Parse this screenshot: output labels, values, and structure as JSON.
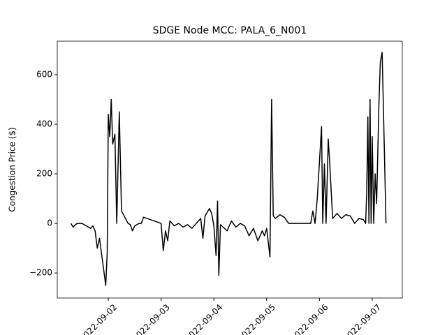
{
  "chart_data": {
    "type": "line",
    "title": "SDGE Node MCC: PALA_6_N001",
    "y_label": "Congestion Price ($)",
    "x": [
      "2022-09-01T07:00",
      "2022-09-01T08:00",
      "2022-09-01T09:00",
      "2022-09-01T10:00",
      "2022-09-01T12:00",
      "2022-09-01T14:00",
      "2022-09-01T16:00",
      "2022-09-01T17:00",
      "2022-09-01T18:00",
      "2022-09-01T19:00",
      "2022-09-01T20:00",
      "2022-09-01T22:50",
      "2022-09-01T23:30",
      "2022-09-02T00:00",
      "2022-09-02T00:40",
      "2022-09-02T01:20",
      "2022-09-02T02:00",
      "2022-09-02T03:00",
      "2022-09-02T03:50",
      "2022-09-02T05:00",
      "2022-09-02T06:00",
      "2022-09-02T09:00",
      "2022-09-02T10:00",
      "2022-09-02T11:00",
      "2022-09-02T12:00",
      "2022-09-02T14:00",
      "2022-09-02T15:00",
      "2022-09-02T16:00",
      "2022-09-03T00:00",
      "2022-09-03T01:00",
      "2022-09-03T02:00",
      "2022-09-03T03:00",
      "2022-09-03T04:00",
      "2022-09-03T06:00",
      "2022-09-03T08:00",
      "2022-09-03T10:00",
      "2022-09-03T12:00",
      "2022-09-03T14:00",
      "2022-09-03T16:00",
      "2022-09-03T18:00",
      "2022-09-03T19:00",
      "2022-09-03T20:00",
      "2022-09-03T22:00",
      "2022-09-03T23:00",
      "2022-09-04T00:00",
      "2022-09-04T01:00",
      "2022-09-04T01:40",
      "2022-09-04T02:15",
      "2022-09-04T03:00",
      "2022-09-04T06:00",
      "2022-09-04T08:00",
      "2022-09-04T10:00",
      "2022-09-04T12:00",
      "2022-09-04T14:00",
      "2022-09-04T16:00",
      "2022-09-04T18:00",
      "2022-09-04T20:00",
      "2022-09-04T22:00",
      "2022-09-04T23:00",
      "2022-09-05T00:00",
      "2022-09-05T01:30",
      "2022-09-05T02:15",
      "2022-09-05T03:00",
      "2022-09-05T04:00",
      "2022-09-05T06:00",
      "2022-09-05T08:00",
      "2022-09-05T10:00",
      "2022-09-05T14:00",
      "2022-09-05T18:00",
      "2022-09-05T20:00",
      "2022-09-05T21:00",
      "2022-09-05T22:00",
      "2022-09-05T23:00",
      "2022-09-06T00:57",
      "2022-09-06T01:30",
      "2022-09-06T02:15",
      "2022-09-06T03:00",
      "2022-09-06T04:00",
      "2022-09-06T04:45",
      "2022-09-06T06:00",
      "2022-09-06T08:00",
      "2022-09-06T10:00",
      "2022-09-06T12:00",
      "2022-09-06T14:00",
      "2022-09-06T16:00",
      "2022-09-06T18:00",
      "2022-09-06T20:00",
      "2022-09-06T21:00",
      "2022-09-06T21:30",
      "2022-09-06T22:00",
      "2022-09-06T22:30",
      "2022-09-06T23:00",
      "2022-09-06T23:30",
      "2022-09-07T00:00",
      "2022-09-07T00:40",
      "2022-09-07T01:20",
      "2022-09-07T02:00",
      "2022-09-07T03:00",
      "2022-09-07T03:40",
      "2022-09-07T04:30",
      "2022-09-07T05:30",
      "2022-09-07T06:15"
    ],
    "series": [
      {
        "name": "PALA_6_N001",
        "color": "#000000",
        "values": [
          0,
          -15,
          -5,
          0,
          0,
          -10,
          -20,
          -10,
          -30,
          -100,
          -60,
          -250,
          -120,
          440,
          350,
          500,
          320,
          360,
          0,
          450,
          50,
          0,
          -5,
          -30,
          -10,
          0,
          0,
          25,
          0,
          -110,
          -30,
          -70,
          10,
          -10,
          0,
          -15,
          -5,
          -20,
          0,
          20,
          -60,
          30,
          60,
          40,
          -10,
          -130,
          90,
          -210,
          -5,
          -30,
          10,
          -15,
          0,
          -10,
          -50,
          -20,
          -70,
          -30,
          -50,
          -20,
          -135,
          500,
          30,
          20,
          35,
          25,
          0,
          0,
          0,
          0,
          50,
          0,
          100,
          390,
          0,
          240,
          0,
          340,
          230,
          20,
          40,
          20,
          35,
          30,
          0,
          20,
          15,
          0,
          130,
          430,
          0,
          500,
          0,
          350,
          0,
          200,
          80,
          470,
          650,
          690,
          300,
          0
        ]
      }
    ],
    "xlim": [
      "2022-09-01T00:48",
      "2022-09-07T13:40"
    ],
    "xticks": [
      {
        "value": "2022-09-02T00:00",
        "label": "2022-09-02"
      },
      {
        "value": "2022-09-03T00:00",
        "label": "2022-09-03"
      },
      {
        "value": "2022-09-04T00:00",
        "label": "2022-09-04"
      },
      {
        "value": "2022-09-05T00:00",
        "label": "2022-09-05"
      },
      {
        "value": "2022-09-06T00:00",
        "label": "2022-09-06"
      },
      {
        "value": "2022-09-07T00:00",
        "label": "2022-09-07"
      }
    ],
    "ylim": [
      -301,
      735
    ],
    "yticks": [
      {
        "value": -200,
        "label": "−200"
      },
      0,
      200,
      400,
      600
    ]
  }
}
